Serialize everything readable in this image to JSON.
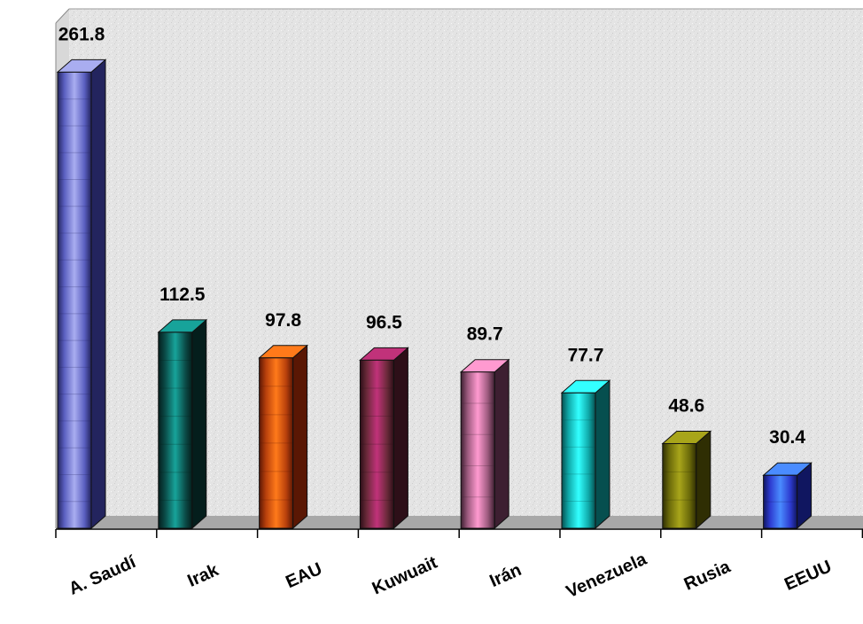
{
  "chart_data": {
    "type": "bar",
    "title": "",
    "xlabel": "",
    "ylabel": "",
    "ylim": [
      0,
      290
    ],
    "grid": false,
    "legend": "none",
    "categories": [
      "A. Saudí",
      "Irak",
      "EAU",
      "Kuwuait",
      "Irán",
      "Venezuela",
      "Rusia",
      "EEUU"
    ],
    "values": [
      261.8,
      112.5,
      97.8,
      96.5,
      89.7,
      77.7,
      48.6,
      30.4
    ],
    "data_labels": [
      "261.8",
      "112.5",
      "97.8",
      "96.5",
      "89.7",
      "77.7",
      "48.6",
      "30.4"
    ],
    "colors": [
      {
        "front": "#5a5fc0",
        "light": "#a9adf0",
        "dark": "#23245e"
      },
      {
        "front": "#0b4c48",
        "light": "#17a39a",
        "dark": "#041e1c"
      },
      {
        "front": "#b8400c",
        "light": "#ff7a1a",
        "dark": "#5a1704"
      },
      {
        "front": "#6b2a3a",
        "light": "#c1327a",
        "dark": "#2d0f18"
      },
      {
        "front": "#9c5a7e",
        "light": "#ff9ad0",
        "dark": "#3d1f31"
      },
      {
        "front": "#0fa8a8",
        "light": "#33ffff",
        "dark": "#064f4f"
      },
      {
        "front": "#6b6a0a",
        "light": "#a8a51a",
        "dark": "#2f2e03"
      },
      {
        "front": "#2d3bd0",
        "light": "#4a8cff",
        "dark": "#101660"
      }
    ]
  }
}
